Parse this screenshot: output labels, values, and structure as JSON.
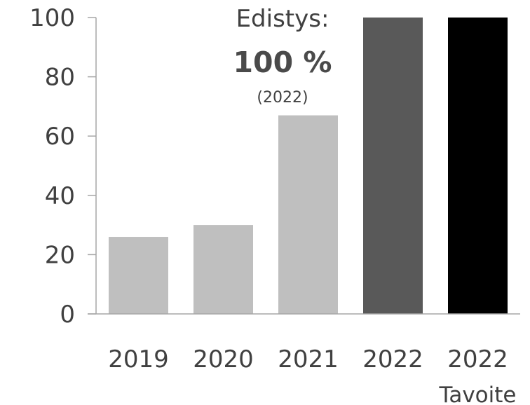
{
  "chart_data": {
    "type": "bar",
    "categories": [
      "2019",
      "2020",
      "2021",
      "2022",
      "2022"
    ],
    "category_sublabels": [
      "",
      "",
      "",
      "",
      "Tavoite"
    ],
    "values": [
      26,
      30,
      67,
      100,
      100
    ],
    "colors": [
      "#bfbfbf",
      "#bfbfbf",
      "#bfbfbf",
      "#595959",
      "#000000"
    ],
    "ylim": [
      0,
      100
    ],
    "yticks": [
      0,
      20,
      40,
      60,
      80,
      100
    ],
    "title": "",
    "xlabel": "",
    "ylabel": "",
    "grid": false,
    "annotation": {
      "title": "Edistys:",
      "value": "100 %",
      "sub": "(2022)"
    }
  }
}
